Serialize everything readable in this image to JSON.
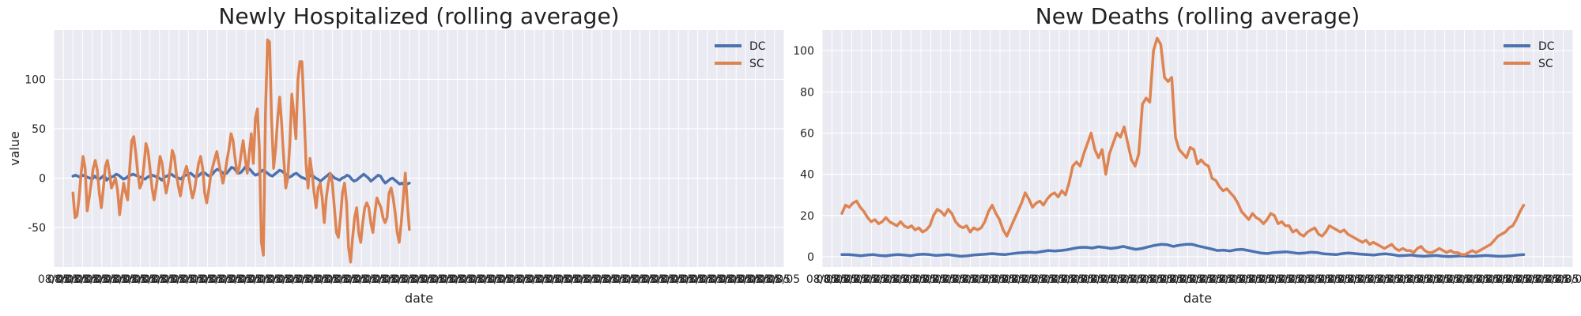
{
  "chart_data": [
    {
      "type": "line",
      "title": "Newly Hospitalized (rolling average)",
      "xlabel": "date",
      "ylabel": "value",
      "ylim": [
        -90,
        150
      ],
      "yticks": [
        -50,
        0,
        50,
        100
      ],
      "xlim": [
        0,
        76
      ],
      "x_ticks_rendered": 77,
      "x_tick_label": "08/05",
      "legend": "top-right",
      "grid": true,
      "background": "#eaeaf2",
      "series": [
        {
          "name": "DC",
          "color": "#4c72b0",
          "x_start": 2,
          "x_end": 37,
          "values": [
            2,
            3,
            2,
            1,
            3,
            2,
            1,
            0,
            -1,
            2,
            0,
            -1,
            1,
            3,
            -2,
            0,
            1,
            2,
            4,
            3,
            1,
            -1,
            0,
            2,
            3,
            4,
            3,
            2,
            1,
            0,
            -1,
            1,
            2,
            3,
            2,
            1,
            0,
            -2,
            1,
            2,
            3,
            4,
            2,
            1,
            0,
            -1,
            2,
            3,
            4,
            5,
            3,
            1,
            2,
            4,
            6,
            5,
            3,
            2,
            4,
            7,
            9,
            8,
            6,
            4,
            5,
            8,
            11,
            10,
            7,
            5,
            6,
            9,
            12,
            10,
            8,
            5,
            3,
            4,
            6,
            8,
            7,
            5,
            3,
            2,
            4,
            6,
            8,
            7,
            5,
            3,
            1,
            2,
            4,
            5,
            3,
            1,
            0,
            -1,
            1,
            3,
            2,
            0,
            -1,
            -3,
            -1,
            1,
            3,
            5,
            2,
            0,
            -1,
            -2,
            0,
            1,
            3,
            2,
            -1,
            -3,
            -2,
            0,
            2,
            4,
            2,
            0,
            -3,
            -1,
            1,
            3,
            2,
            -2,
            -5,
            -3,
            -1,
            0,
            -2,
            -4,
            -6,
            -5,
            -7,
            -6,
            -5
          ]
        },
        {
          "name": "SC",
          "color": "#dd8452",
          "x_start": 2,
          "x_end": 37,
          "values": [
            -15,
            -40,
            -38,
            -20,
            5,
            22,
            10,
            -33,
            -20,
            -5,
            10,
            18,
            8,
            -15,
            -30,
            -10,
            12,
            18,
            5,
            -10,
            -5,
            0,
            -12,
            -37,
            -20,
            -5,
            -15,
            -22,
            10,
            38,
            42,
            25,
            5,
            -10,
            -5,
            12,
            35,
            28,
            10,
            -10,
            -22,
            -10,
            5,
            22,
            15,
            -3,
            -15,
            -5,
            10,
            28,
            22,
            5,
            -8,
            -18,
            -5,
            5,
            12,
            3,
            -10,
            -20,
            -12,
            2,
            15,
            22,
            10,
            -15,
            -25,
            -12,
            3,
            12,
            20,
            27,
            15,
            5,
            -5,
            5,
            18,
            30,
            45,
            38,
            20,
            5,
            10,
            25,
            38,
            20,
            5,
            25,
            45,
            15,
            60,
            70,
            30,
            -65,
            -78,
            65,
            140,
            138,
            60,
            10,
            30,
            60,
            82,
            55,
            20,
            -10,
            0,
            35,
            85,
            65,
            40,
            100,
            118,
            118,
            70,
            15,
            -10,
            20,
            5,
            -15,
            -30,
            -10,
            -5,
            -20,
            -45,
            -20,
            -5,
            5,
            -5,
            -30,
            -55,
            -60,
            -40,
            -15,
            -5,
            -25,
            -70,
            -85,
            -60,
            -40,
            -30,
            -55,
            -65,
            -45,
            -30,
            -25,
            -30,
            -45,
            -55,
            -35,
            -20,
            -25,
            -30,
            -40,
            -45,
            -40,
            -15,
            -10,
            -20,
            -35,
            -55,
            -65,
            -45,
            -20,
            5,
            -25,
            -52
          ]
        }
      ]
    },
    {
      "type": "line",
      "title": "New Deaths (rolling average)",
      "xlabel": "date",
      "ylabel": "",
      "ylim": [
        -5,
        110
      ],
      "yticks": [
        0,
        20,
        40,
        60,
        80,
        100
      ],
      "xlim": [
        0,
        76
      ],
      "x_ticks_rendered": 77,
      "x_tick_label": "08/05",
      "legend": "top-right",
      "grid": true,
      "background": "#eaeaf2",
      "series": [
        {
          "name": "DC",
          "color": "#4c72b0",
          "x_start": 2,
          "x_end": 71,
          "values": [
            1,
            1,
            0.8,
            0.5,
            0.8,
            1,
            0.6,
            0.4,
            0.8,
            1,
            0.8,
            0.5,
            1,
            1.2,
            1,
            0.6,
            0.8,
            1,
            0.6,
            0.2,
            0.4,
            0.8,
            1,
            1.2,
            1.5,
            1.2,
            1,
            1.4,
            1.8,
            2,
            2.2,
            2,
            2.5,
            3,
            2.8,
            3,
            3.4,
            4,
            4.5,
            4.6,
            4.2,
            4.8,
            4.5,
            4,
            4.4,
            5,
            4.2,
            3.6,
            4,
            4.8,
            5.5,
            6,
            5.8,
            5,
            5.6,
            6,
            6,
            5.2,
            4.5,
            3.8,
            3,
            3.2,
            2.8,
            3.4,
            3.6,
            3,
            2.4,
            1.8,
            1.5,
            2,
            2.2,
            2.4,
            2,
            1.6,
            1.8,
            2.2,
            2,
            1.4,
            1.2,
            1,
            1.5,
            1.8,
            1.5,
            1.2,
            1,
            0.8,
            1.2,
            1.4,
            1,
            0.5,
            0.6,
            0.8,
            0.4,
            0.2,
            0.4,
            0.6,
            0.3,
            0.1,
            0.2,
            0.5,
            0.3,
            0.2,
            0.4,
            0.6,
            0.4,
            0.2,
            0.3,
            0.5,
            0.8,
            1
          ]
        },
        {
          "name": "SC",
          "color": "#dd8452",
          "x_start": 2,
          "x_end": 71,
          "values": [
            21,
            25,
            24,
            26,
            27,
            24,
            22,
            19,
            17,
            18,
            16,
            17,
            19,
            17,
            16,
            15,
            17,
            15,
            14,
            15,
            13,
            14,
            12,
            13,
            15,
            20,
            23,
            22,
            20,
            23,
            21,
            17,
            15,
            14,
            15,
            12,
            14,
            13,
            14,
            17,
            22,
            25,
            21,
            18,
            13,
            10,
            14,
            18,
            22,
            26,
            31,
            28,
            24,
            26,
            27,
            25,
            28,
            30,
            31,
            29,
            32,
            30,
            36,
            44,
            46,
            44,
            50,
            55,
            60,
            52,
            48,
            52,
            40,
            50,
            55,
            60,
            58,
            63,
            55,
            47,
            44,
            50,
            74,
            77,
            75,
            100,
            106,
            103,
            87,
            85,
            87,
            58,
            52,
            50,
            48,
            53,
            52,
            45,
            47,
            45,
            44,
            38,
            37,
            34,
            32,
            33,
            31,
            29,
            26,
            22,
            20,
            18,
            21,
            19,
            18,
            16,
            18,
            21,
            20,
            16,
            17,
            15,
            15,
            12,
            13,
            11,
            10,
            12,
            13,
            14,
            11,
            10,
            12,
            15,
            14,
            13,
            12,
            13,
            11,
            10,
            9,
            8,
            7,
            8,
            6,
            7,
            6,
            5,
            4,
            5,
            6,
            4,
            3,
            4,
            3,
            3,
            2,
            4,
            5,
            3,
            2,
            2,
            3,
            4,
            3,
            2,
            3,
            2,
            2,
            1,
            1,
            2,
            3,
            2,
            3,
            4,
            5,
            6,
            8,
            10,
            11,
            12,
            14,
            15,
            18,
            22,
            25
          ]
        }
      ]
    }
  ]
}
